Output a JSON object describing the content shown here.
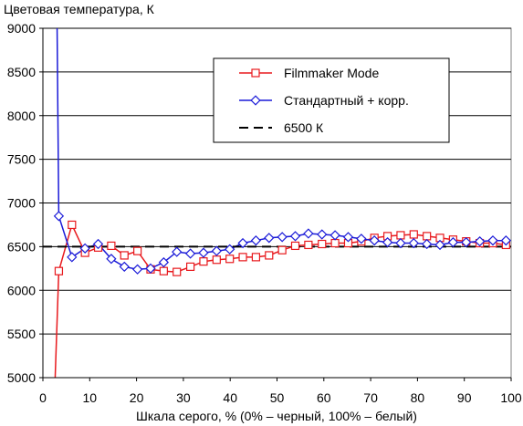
{
  "chart_data": {
    "type": "line",
    "title": "Цветовая температура, К",
    "xlabel": "Шкала серого, % (0% – черный, 100% – белый)",
    "ylabel": "",
    "xlim": [
      0,
      100
    ],
    "ylim": [
      5000,
      9000
    ],
    "x_ticks": [
      0,
      10,
      20,
      30,
      40,
      50,
      60,
      70,
      80,
      90,
      100
    ],
    "y_ticks": [
      5000,
      5500,
      6000,
      6500,
      7000,
      7500,
      8000,
      8500,
      9000
    ],
    "grid": "horizontal",
    "legend_position": "top-right",
    "series": [
      {
        "name": "Filmmaker Mode",
        "color": "#e8191d",
        "marker": "square",
        "x": [
          2.3,
          3.4,
          6.2,
          9.0,
          11.8,
          14.6,
          17.4,
          20.2,
          23.0,
          25.8,
          28.6,
          31.5,
          34.3,
          37.1,
          39.9,
          42.7,
          45.5,
          48.3,
          51.1,
          53.9,
          56.7,
          59.6,
          62.4,
          65.2,
          68.0,
          70.8,
          73.6,
          76.4,
          79.2,
          82.0,
          84.8,
          87.6,
          90.4,
          93.3,
          96.1,
          98.9
        ],
        "y": [
          4500,
          6220,
          6750,
          6430,
          6490,
          6510,
          6400,
          6450,
          6240,
          6220,
          6210,
          6270,
          6330,
          6350,
          6360,
          6380,
          6380,
          6400,
          6460,
          6510,
          6520,
          6530,
          6540,
          6540,
          6560,
          6600,
          6620,
          6630,
          6640,
          6620,
          6600,
          6580,
          6560,
          6540,
          6540,
          6520
        ]
      },
      {
        "name": "Стандартный + корр.",
        "color": "#1a1ad8",
        "marker": "diamond",
        "x": [
          3.0,
          3.4,
          6.2,
          9.0,
          11.8,
          14.6,
          17.4,
          20.2,
          23.0,
          25.8,
          28.6,
          31.5,
          34.3,
          37.1,
          39.9,
          42.7,
          45.5,
          48.3,
          51.1,
          53.9,
          56.7,
          59.6,
          62.4,
          65.2,
          68.0,
          70.8,
          73.6,
          76.4,
          79.2,
          82.0,
          84.8,
          87.6,
          90.4,
          93.3,
          96.1,
          98.9
        ],
        "y": [
          9200,
          6850,
          6380,
          6480,
          6530,
          6360,
          6270,
          6240,
          6250,
          6320,
          6440,
          6420,
          6430,
          6450,
          6470,
          6540,
          6570,
          6600,
          6610,
          6620,
          6650,
          6640,
          6630,
          6610,
          6590,
          6570,
          6550,
          6540,
          6540,
          6530,
          6520,
          6550,
          6550,
          6560,
          6570,
          6570
        ]
      },
      {
        "name": "6500 К",
        "color": "#000000",
        "style": "dashed",
        "x": [
          0,
          100
        ],
        "y": [
          6500,
          6500
        ]
      }
    ]
  }
}
